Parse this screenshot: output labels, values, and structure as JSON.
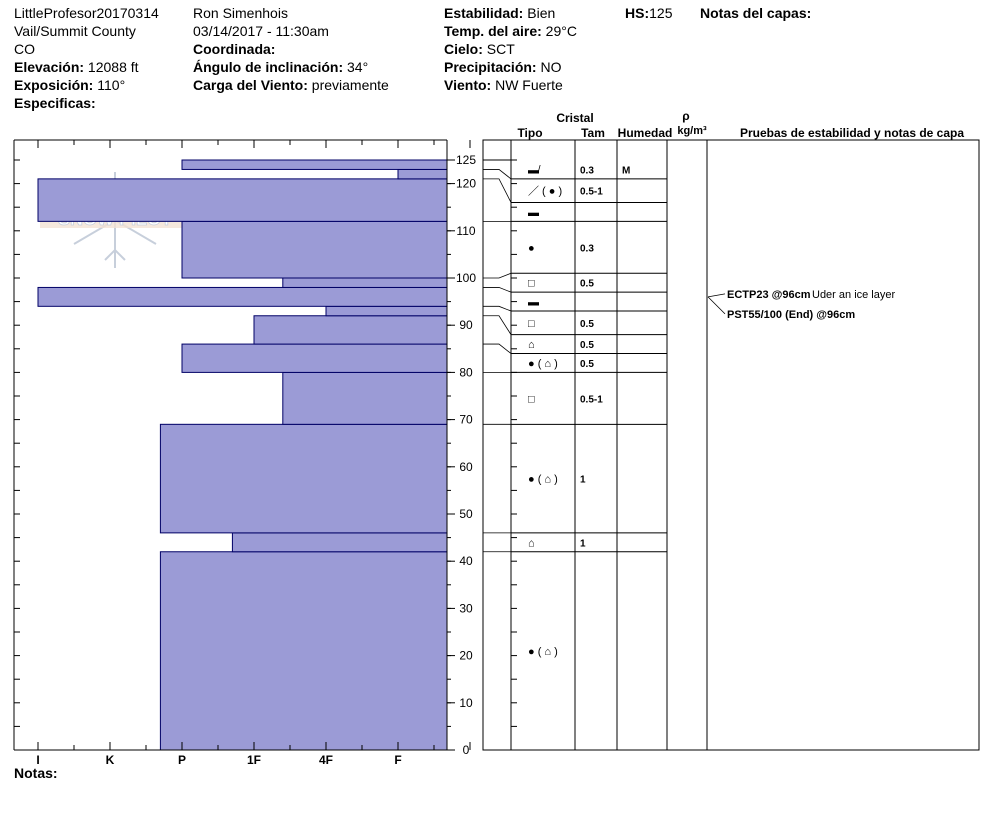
{
  "header": {
    "col1": {
      "profile_name": "LittleProfesor20170314",
      "location": "Vail/Summit County",
      "state": "CO",
      "elevation_label": "Elevación:",
      "elevation_value": "12088 ft",
      "aspect_label": "Exposición:",
      "aspect_value": "110°",
      "specifics_label": "Especificas:"
    },
    "col2": {
      "observer": "Ron Simenhois",
      "datetime": "03/14/2017 - 11:30am",
      "coord_label": "Coordinada:",
      "slope_label": "Ángulo de inclinación:",
      "slope_value": "34°",
      "wind_load_label": "Carga del Viento:",
      "wind_load_value": "previamente"
    },
    "col3": {
      "stability_label": "Estabilidad:",
      "stability_value": "Bien",
      "air_temp_label": "Temp. del aire:",
      "air_temp_value": "29°C",
      "sky_label": "Cielo:",
      "sky_value": "SCT",
      "precip_label": "Precipitación:",
      "precip_value": "NO",
      "wind_label": "Viento:",
      "wind_value": "NW Fuerte"
    },
    "hs_label": "HS:",
    "hs_value": "125",
    "layer_notes_label": "Notas del capas:"
  },
  "columns": {
    "crystal": "Cristal",
    "type": "Tipo",
    "size": "Tam",
    "moisture": "Humedad",
    "density_symbol": "ρ",
    "density_unit": "kg/m³",
    "stability_notes": "Pruebas de estabilidad y notas de capa"
  },
  "logo_text": "SNOW PILOT",
  "footer_notes_label": "Notas:",
  "chart_data": {
    "type": "bar",
    "orientation": "horizontal",
    "y_axis": {
      "min": 0,
      "max": 128,
      "major_ticks": [
        0,
        10,
        20,
        30,
        40,
        50,
        60,
        70,
        80,
        90,
        100,
        110,
        120,
        125
      ]
    },
    "x_axis": {
      "categories": [
        "I",
        "K",
        "P",
        "1F",
        "4F",
        "F"
      ]
    },
    "hardness_layers": [
      {
        "bottom": 0,
        "top": 42,
        "hardness": 1.7
      },
      {
        "bottom": 42,
        "top": 46,
        "hardness": 2.7
      },
      {
        "bottom": 46,
        "top": 69,
        "hardness": 1.7
      },
      {
        "bottom": 69,
        "top": 80,
        "hardness": 3.4
      },
      {
        "bottom": 80,
        "top": 86,
        "hardness": 2.0
      },
      {
        "bottom": 86,
        "top": 92,
        "hardness": 3.0
      },
      {
        "bottom": 92,
        "top": 94,
        "hardness": 4.0
      },
      {
        "bottom": 94,
        "top": 98,
        "hardness": 0.0
      },
      {
        "bottom": 98,
        "top": 100,
        "hardness": 3.4
      },
      {
        "bottom": 100,
        "top": 112,
        "hardness": 2.0
      },
      {
        "bottom": 112,
        "top": 121,
        "hardness": 0.0
      },
      {
        "bottom": 121,
        "top": 123,
        "hardness": 5.0
      },
      {
        "bottom": 123,
        "top": 125,
        "hardness": 2.0
      }
    ],
    "crystal_rows": [
      {
        "bottom": 121,
        "top": 125,
        "type": "▬̸",
        "size": "0.3",
        "moisture": "M"
      },
      {
        "bottom": 116,
        "top": 121,
        "type": "／ ( ● )",
        "size": "0.5-1",
        "moisture": ""
      },
      {
        "bottom": 112,
        "top": 116,
        "type": "▬",
        "size": "",
        "moisture": ""
      },
      {
        "bottom": 101,
        "top": 112,
        "type": "●",
        "size": "0.3",
        "moisture": ""
      },
      {
        "bottom": 97,
        "top": 101,
        "type": "□",
        "size": "0.5",
        "moisture": ""
      },
      {
        "bottom": 93,
        "top": 97,
        "type": "▬",
        "size": "",
        "moisture": ""
      },
      {
        "bottom": 88,
        "top": 93,
        "type": "□",
        "size": "0.5",
        "moisture": ""
      },
      {
        "bottom": 84,
        "top": 88,
        "type": "⌂",
        "size": "0.5",
        "moisture": ""
      },
      {
        "bottom": 80,
        "top": 84,
        "type": "● ( ⌂ )",
        "size": "0.5",
        "moisture": ""
      },
      {
        "bottom": 69,
        "top": 80,
        "type": "□",
        "size": "0.5-1",
        "moisture": ""
      },
      {
        "bottom": 46,
        "top": 69,
        "type": "● ( ⌂ )",
        "size": "1",
        "moisture": ""
      },
      {
        "bottom": 42,
        "top": 46,
        "type": "⌂",
        "size": "1",
        "moisture": ""
      },
      {
        "bottom": 0,
        "top": 42,
        "type": "● ( ⌂ )",
        "size": "",
        "moisture": ""
      }
    ],
    "stability_tests": [
      {
        "depth": 96,
        "bold": "ECTP23 @96cm",
        "note": "Uder an ice layer"
      },
      {
        "depth": 96,
        "bold": "PST55/100 (End) @96cm",
        "note": ""
      }
    ]
  }
}
